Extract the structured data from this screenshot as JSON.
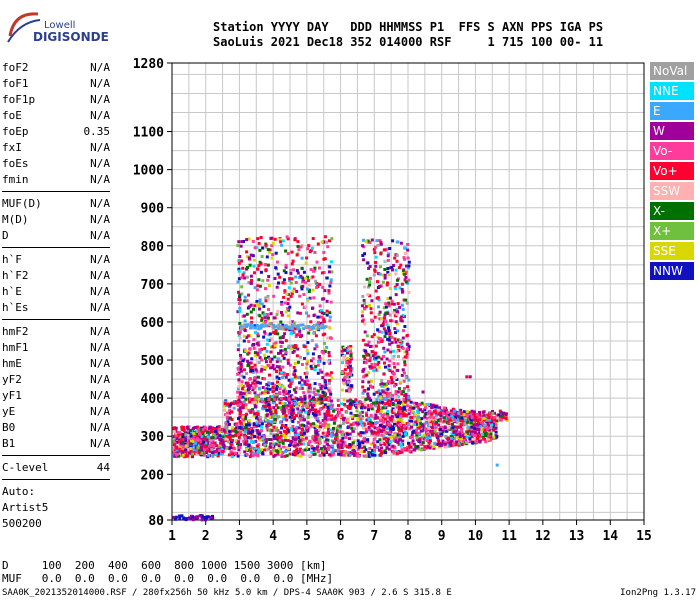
{
  "logo": {
    "line1": "Lowell",
    "line2": "DIGISONDE"
  },
  "header": {
    "line1": "Station YYYY DAY   DDD HHMMSS P1  FFS S AXN PPS IGA PS",
    "line2": "SaoLuis 2021 Dec18 352 014000 RSF     1 715 100 00- 11"
  },
  "params": {
    "group1": [
      {
        "k": "foF2",
        "v": "N/A"
      },
      {
        "k": "foF1",
        "v": "N/A"
      },
      {
        "k": "foF1p",
        "v": "N/A"
      },
      {
        "k": "foE",
        "v": "N/A"
      },
      {
        "k": "foEp",
        "v": "0.35"
      },
      {
        "k": "fxI",
        "v": "N/A"
      },
      {
        "k": "foEs",
        "v": "N/A"
      },
      {
        "k": "fmin",
        "v": "N/A"
      }
    ],
    "group2": [
      {
        "k": "MUF(D)",
        "v": "N/A"
      },
      {
        "k": "M(D)",
        "v": "N/A"
      },
      {
        "k": "D",
        "v": "N/A"
      }
    ],
    "group3": [
      {
        "k": "h`F",
        "v": "N/A"
      },
      {
        "k": "h`F2",
        "v": "N/A"
      },
      {
        "k": "h`E",
        "v": "N/A"
      },
      {
        "k": "h`Es",
        "v": "N/A"
      }
    ],
    "group4": [
      {
        "k": "hmF2",
        "v": "N/A"
      },
      {
        "k": "hmF1",
        "v": "N/A"
      },
      {
        "k": "hmE",
        "v": "N/A"
      },
      {
        "k": "yF2",
        "v": "N/A"
      },
      {
        "k": "yF1",
        "v": "N/A"
      },
      {
        "k": "yE",
        "v": "N/A"
      },
      {
        "k": "B0",
        "v": "N/A"
      },
      {
        "k": "B1",
        "v": "N/A"
      }
    ],
    "clevel": {
      "k": "C-level",
      "v": "44"
    },
    "auto": [
      "Auto:",
      "Artist5",
      "500200"
    ]
  },
  "legend": [
    {
      "label": "NoVal",
      "color": "#a0a0a0"
    },
    {
      "label": "NNE",
      "color": "#00e0ff"
    },
    {
      "label": "E",
      "color": "#3aa8ff"
    },
    {
      "label": "W",
      "color": "#a0009a"
    },
    {
      "label": "Vo-",
      "color": "#ff3c9c"
    },
    {
      "label": "Vo+",
      "color": "#ff0030"
    },
    {
      "label": "SSW",
      "color": "#ffb0b0"
    },
    {
      "label": "X-",
      "color": "#007000"
    },
    {
      "label": "X+",
      "color": "#70c040"
    },
    {
      "label": "SSE",
      "color": "#d8d800"
    },
    {
      "label": "NNW",
      "color": "#1010c0"
    }
  ],
  "chart_data": {
    "type": "scatter",
    "xlim": [
      1,
      15
    ],
    "ylim": [
      80,
      1280
    ],
    "x_ticks": [
      "1",
      "2",
      "3",
      "4",
      "5",
      "6",
      "7",
      "8",
      "9",
      "10",
      "11",
      "12",
      "13",
      "14",
      "15"
    ],
    "y_ticks": [
      "80",
      "200",
      "300",
      "400",
      "500",
      "600",
      "700",
      "800",
      "900",
      "1000",
      "1100",
      "1280"
    ],
    "grid": true,
    "clusters": [
      {
        "name": "F-trace band",
        "x": [
          1.0,
          10.8
        ],
        "y": [
          250,
          400
        ]
      },
      {
        "name": "spread F 3-6 MHz",
        "x": [
          2.9,
          5.7
        ],
        "y": [
          400,
          840
        ]
      },
      {
        "name": "spread F 6.5-8 MHz",
        "x": [
          6.6,
          8.0
        ],
        "y": [
          400,
          830
        ]
      },
      {
        "name": "low echoes",
        "x": [
          1.0,
          2.2
        ],
        "y": [
          80,
          100
        ]
      }
    ]
  },
  "d_table": {
    "line1": "D     100  200  400  600  800 1000 1500 3000 [km]",
    "line2": "MUF   0.0  0.0  0.0  0.0  0.0  0.0  0.0  0.0 [MHz]"
  },
  "footer": "SAA0K_2021352014000.RSF / 280fx256h 50 kHz 5.0 km / DPS-4 SAA0K 903 / 2.6 S 315.8 E",
  "version": "Ion2Png 1.3.17"
}
